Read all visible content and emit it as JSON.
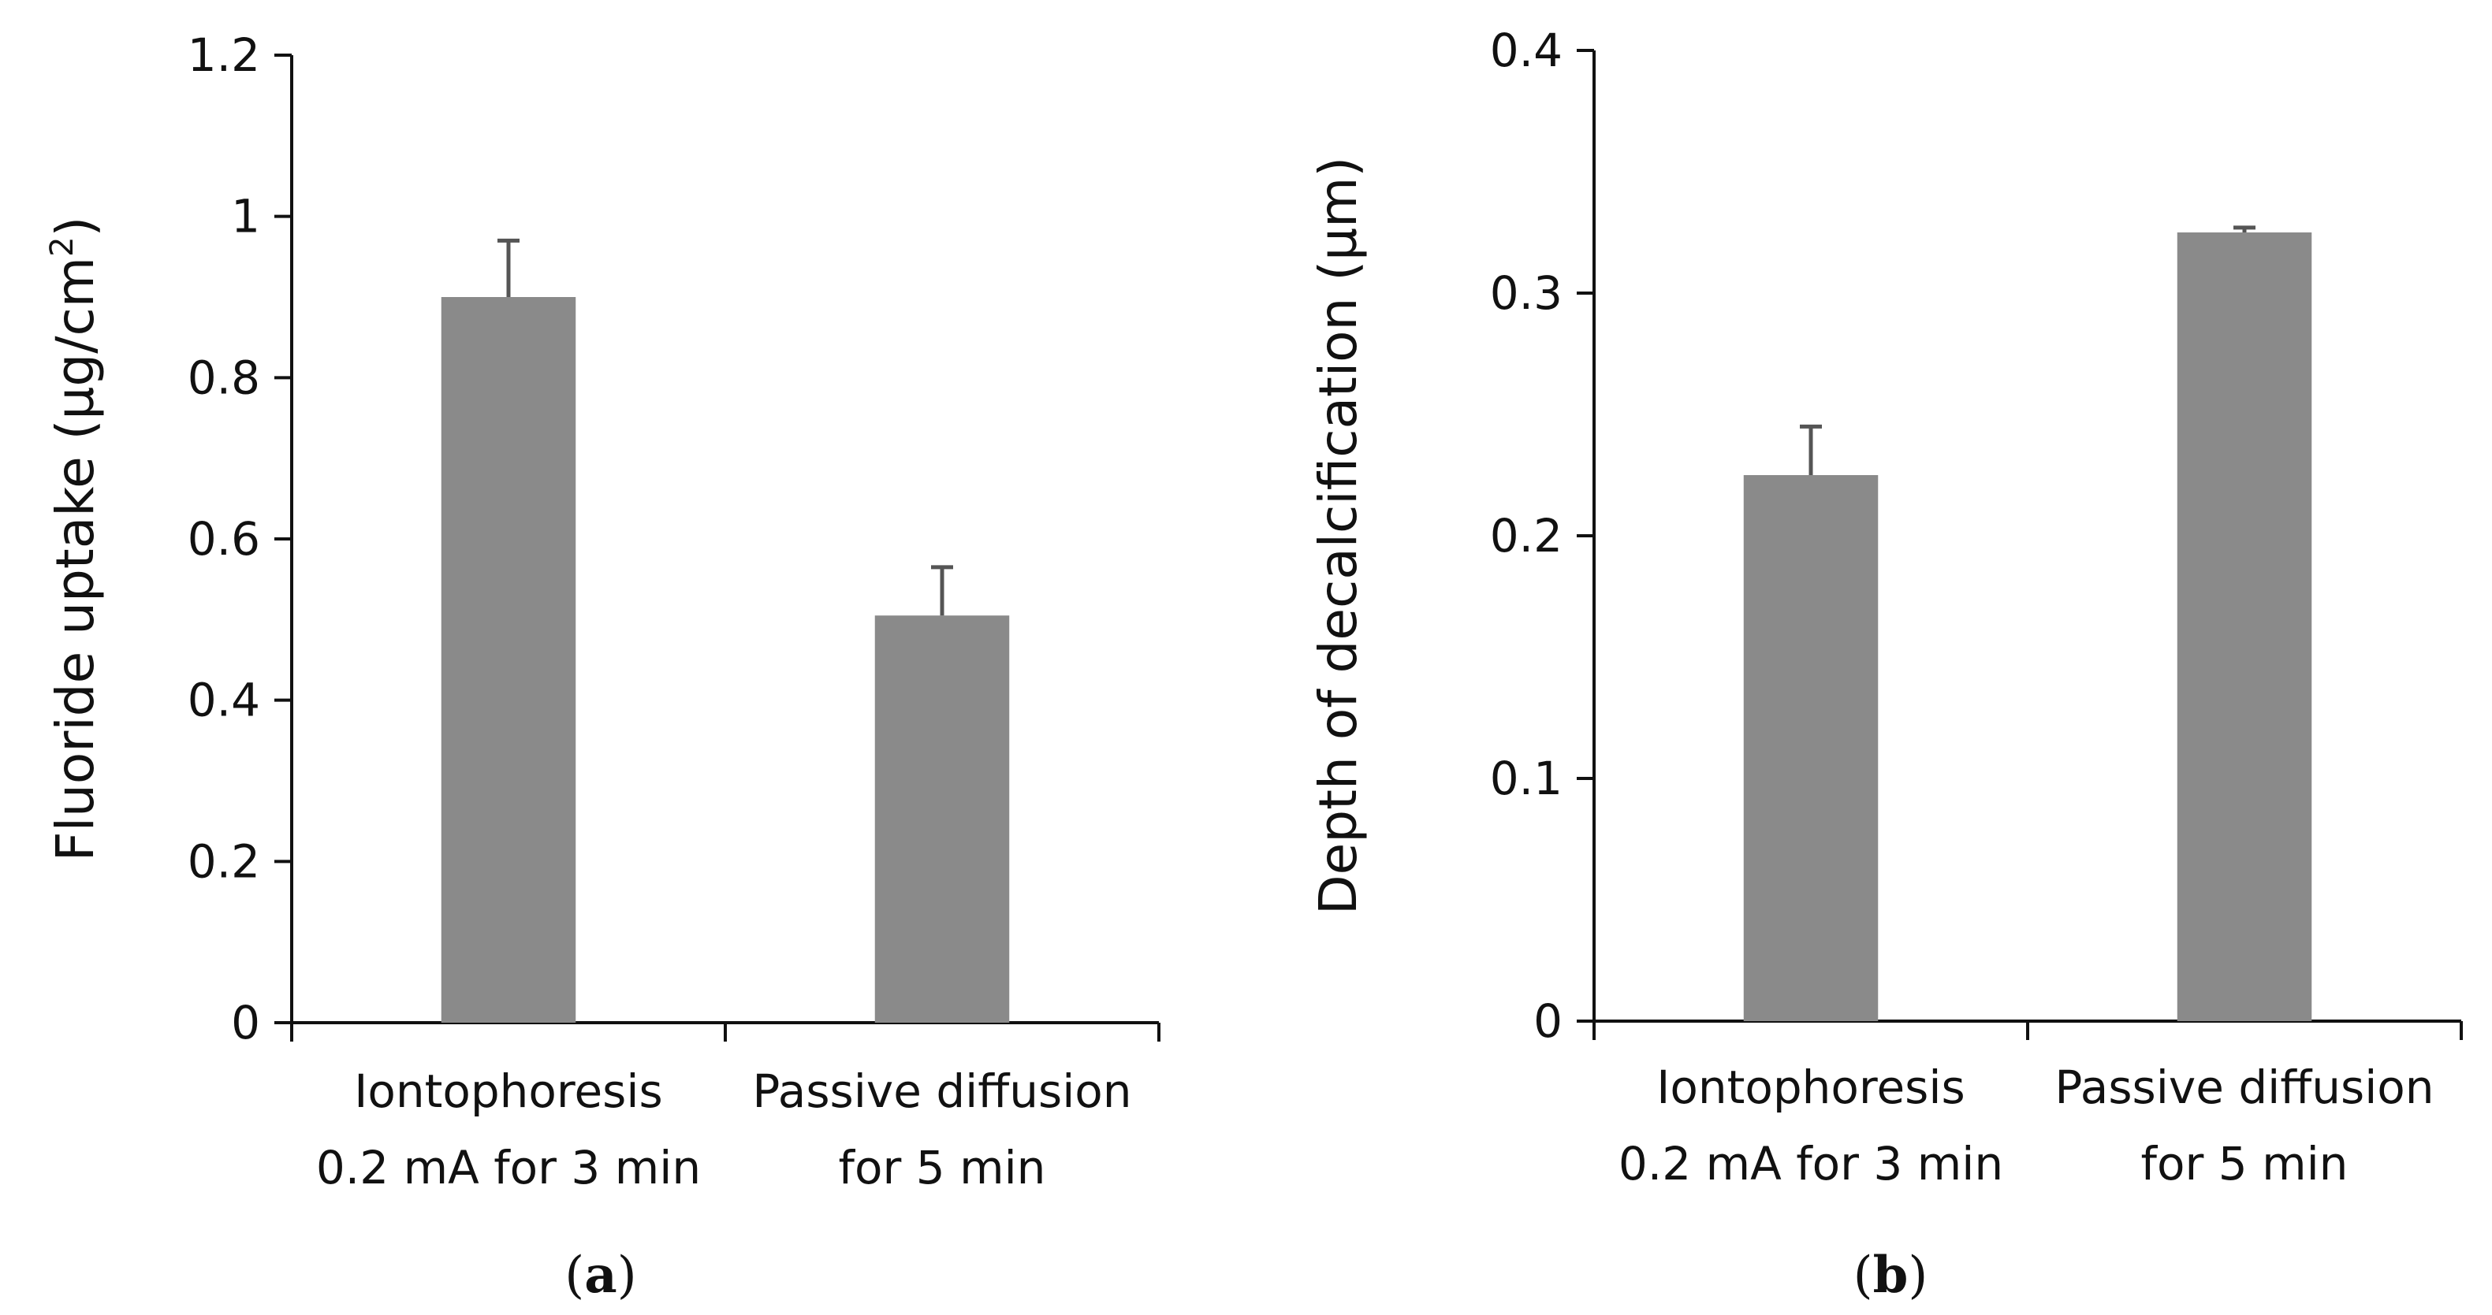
{
  "chart_data": [
    {
      "panel": "a",
      "panel_label": {
        "open": "(",
        "letter": "a",
        "close": ")"
      },
      "type": "bar",
      "categories": [
        {
          "line1": "Iontophoresis",
          "line2": "0.2 mA for 3 min"
        },
        {
          "line1": "Passive diffusion",
          "line2": "for 5 min"
        }
      ],
      "values": [
        0.9,
        0.505
      ],
      "errors": [
        0.07,
        0.06
      ],
      "ylabel": {
        "main": "Fluoride uptake (µg/cm",
        "sup": "2",
        "close": ")"
      },
      "ylim": [
        0,
        1.2
      ],
      "yticks": [
        {
          "value": 0,
          "label": "0"
        },
        {
          "value": 0.2,
          "label": "0.2"
        },
        {
          "value": 0.4,
          "label": "0.4"
        },
        {
          "value": 0.6,
          "label": "0.6"
        },
        {
          "value": 0.8,
          "label": "0.8"
        },
        {
          "value": 1.0,
          "label": "1"
        },
        {
          "value": 1.2,
          "label": "1.2"
        }
      ],
      "bar_color": "#8a8a8a",
      "grid": false
    },
    {
      "panel": "b",
      "panel_label": {
        "open": "(",
        "letter": "b",
        "close": ")"
      },
      "type": "bar",
      "categories": [
        {
          "line1": "Iontophoresis",
          "line2": "0.2 mA for 3 min"
        },
        {
          "line1": "Passive diffusion",
          "line2": "for 5 min"
        }
      ],
      "values": [
        0.225,
        0.325
      ],
      "errors": [
        0.02,
        0.002
      ],
      "ylabel": {
        "main": "Depth of decalcification (µm)",
        "sup": "",
        "close": ""
      },
      "ylim": [
        0,
        0.4
      ],
      "yticks": [
        {
          "value": 0,
          "label": "0"
        },
        {
          "value": 0.1,
          "label": "0.1"
        },
        {
          "value": 0.2,
          "label": "0.2"
        },
        {
          "value": 0.3,
          "label": "0.3"
        },
        {
          "value": 0.4,
          "label": "0.4"
        }
      ],
      "bar_color": "#8a8a8a",
      "grid": false
    }
  ]
}
